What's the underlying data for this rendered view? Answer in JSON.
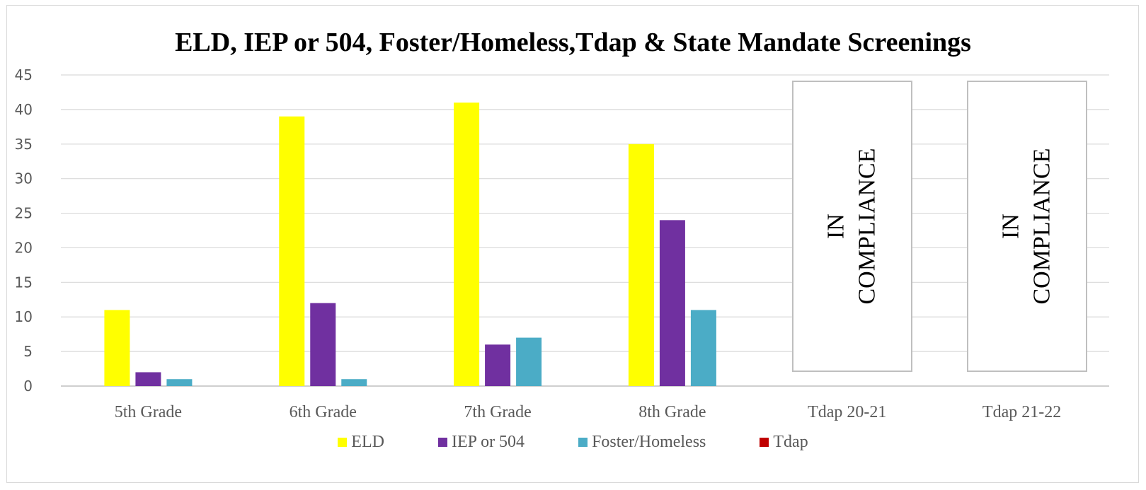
{
  "chart_data": {
    "type": "bar",
    "title": "ELD, IEP or 504, Foster/Homeless,Tdap  & State Mandate Screenings",
    "categories": [
      "5th Grade",
      "6th Grade",
      "7th Grade",
      "8th Grade",
      "Tdap 20-21",
      "Tdap 21-22"
    ],
    "series": [
      {
        "name": "ELD",
        "color": "#ffff00",
        "values": [
          11,
          39,
          41,
          35,
          null,
          null
        ]
      },
      {
        "name": "IEP or 504",
        "color": "#7030a0",
        "values": [
          2,
          12,
          6,
          24,
          null,
          null
        ]
      },
      {
        "name": "Foster/Homeless",
        "color": "#4bacc6",
        "values": [
          1,
          1,
          7,
          11,
          null,
          null
        ]
      },
      {
        "name": "Tdap",
        "color": "#c00000",
        "values": [
          null,
          null,
          null,
          null,
          null,
          null
        ]
      }
    ],
    "ylim": [
      0,
      45
    ],
    "yticks": [
      0,
      5,
      10,
      15,
      20,
      25,
      30,
      35,
      40,
      45
    ],
    "grid": true,
    "legend_position": "bottom",
    "annotations": [
      {
        "category": "Tdap 20-21",
        "line1": "IN",
        "line2": "COMPLIANCE"
      },
      {
        "category": "Tdap 21-22",
        "line1": "IN",
        "line2": "COMPLIANCE"
      }
    ]
  }
}
